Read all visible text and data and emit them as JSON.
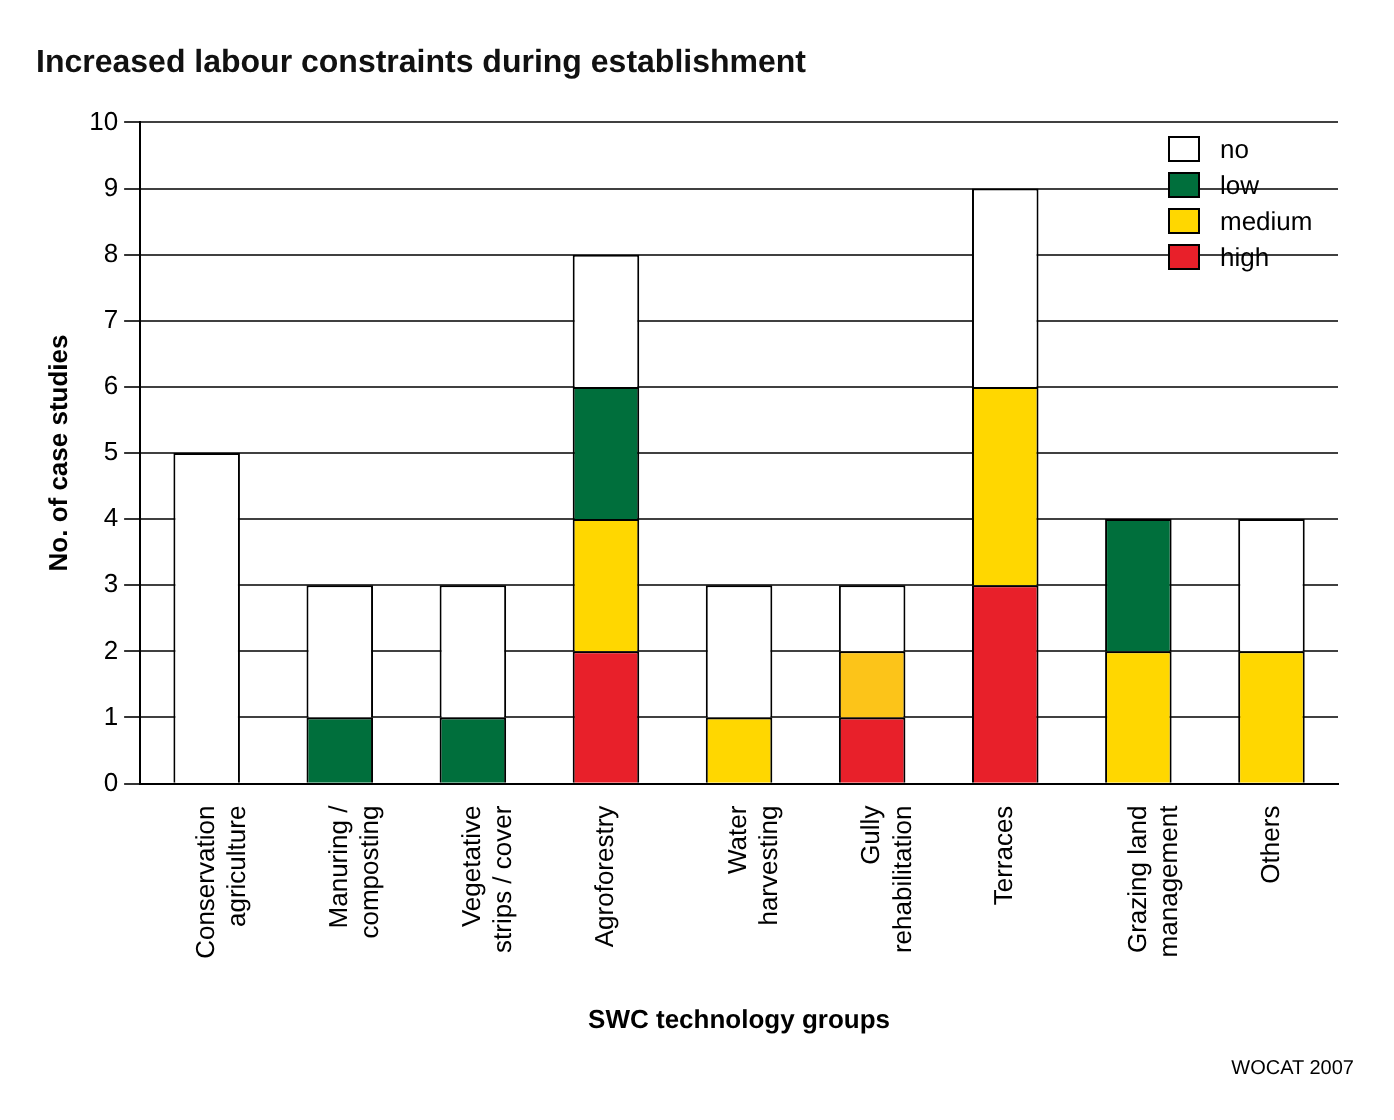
{
  "chart_data": {
    "type": "bar",
    "title": "Increased labour constraints during establishment",
    "xlabel": "SWC technology groups",
    "ylabel": "No. of case studies",
    "annotations": [
      "WOCAT 2007"
    ],
    "categories": [
      "Conservation agriculture",
      "Manuring / composting",
      "Vegetative strips / cover",
      "Agroforestry",
      "Water harvesting",
      "Gully rehabilitation",
      "Terraces",
      "Grazing land management",
      "Others"
    ],
    "stacked": true,
    "ylim": [
      0,
      10
    ],
    "yticks": [
      0,
      1,
      2,
      3,
      4,
      5,
      6,
      7,
      8,
      9,
      10
    ],
    "grid": "y",
    "legend": "top right",
    "series": [
      {
        "name": "high",
        "color": "#e8202a",
        "values": [
          0,
          0,
          0,
          2,
          0,
          1,
          3,
          0,
          0
        ]
      },
      {
        "name": "medium",
        "color": "#ffd700",
        "colors": [
          "#ffd700",
          "#ffd700",
          "#ffd700",
          "#ffd700",
          "#ffd700",
          "#fcc419",
          "#ffd700",
          "#ffd700",
          "#ffd700"
        ],
        "values": [
          0,
          0,
          0,
          2,
          1,
          1,
          3,
          2,
          2
        ]
      },
      {
        "name": "low",
        "color": "#006f3c",
        "values": [
          0,
          1,
          1,
          2,
          0,
          0,
          0,
          2,
          0
        ]
      },
      {
        "name": "no",
        "color": "#ffffff",
        "values": [
          5,
          2,
          2,
          2,
          2,
          1,
          3,
          0,
          2
        ]
      }
    ]
  }
}
